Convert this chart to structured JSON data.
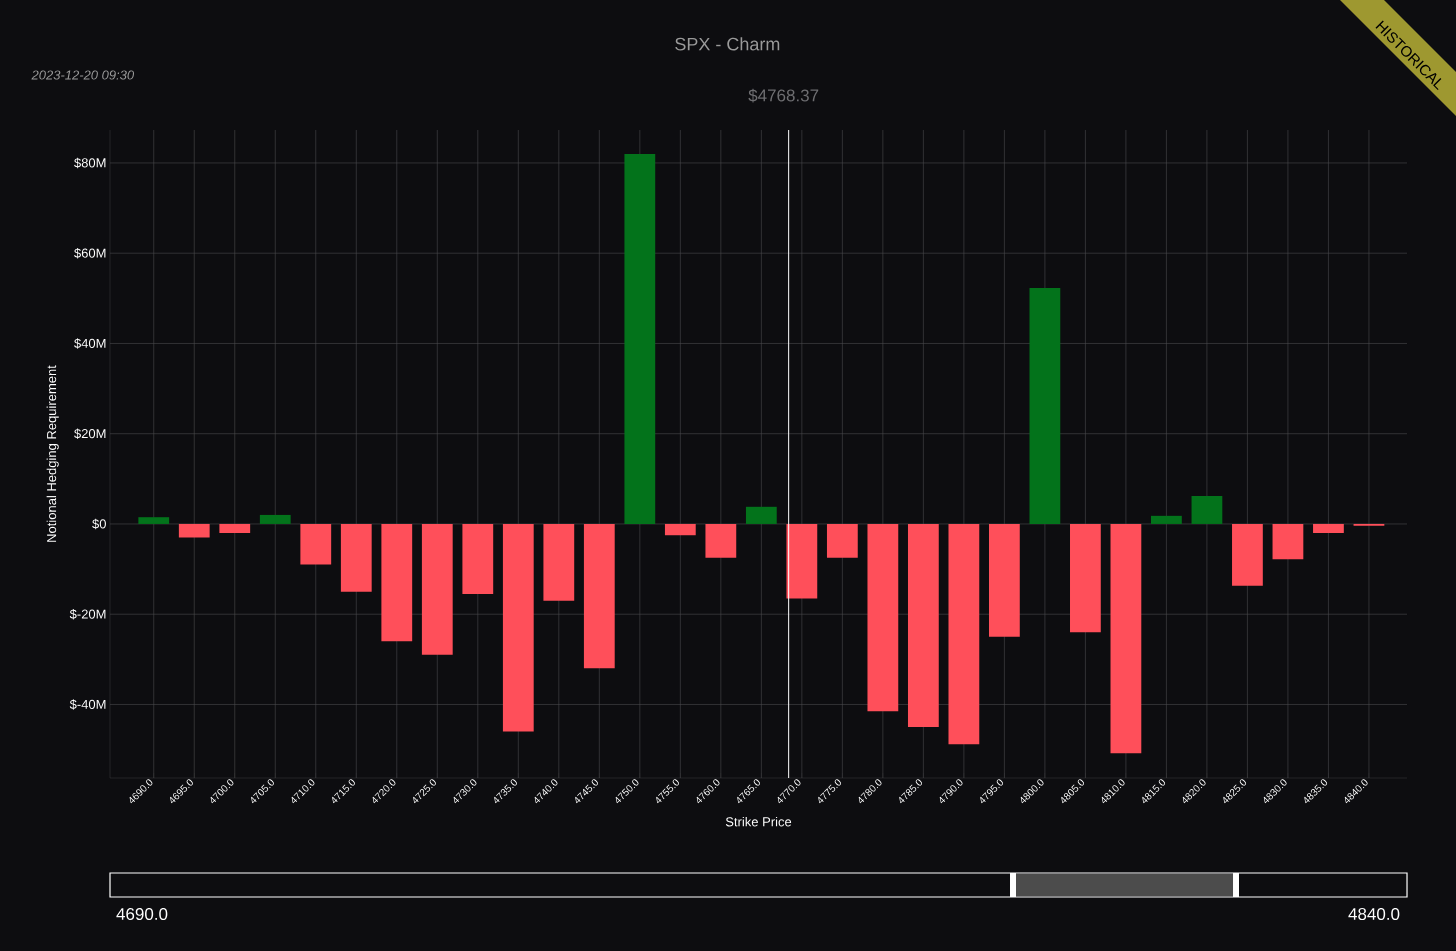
{
  "chart_data": {
    "type": "bar",
    "title": "SPX - Charm",
    "xlabel": "Strike Price",
    "ylabel": "Notional Hedging Requirement",
    "x": [
      4690,
      4695,
      4700,
      4705,
      4710,
      4715,
      4720,
      4725,
      4730,
      4735,
      4740,
      4745,
      4750,
      4755,
      4760,
      4765,
      4770,
      4775,
      4780,
      4785,
      4790,
      4795,
      4800,
      4805,
      4810,
      4815,
      4820,
      4825,
      4830,
      4835,
      4840
    ],
    "values": [
      1.5,
      -3,
      -2,
      2,
      -9,
      -15,
      -26,
      -29,
      -15.5,
      -46,
      -17,
      -32,
      82,
      -2.5,
      -7.5,
      3.8,
      -16.5,
      -7.5,
      -41.5,
      -45,
      -48.8,
      -25,
      52.3,
      -24,
      -50.8,
      1.8,
      6.2,
      -13.7,
      -7.8,
      -2,
      -0.4
    ],
    "colors": [
      "#03731b",
      "#ff4f5a",
      "#ff4f5a",
      "#03731b",
      "#ff4f5a",
      "#ff4f5a",
      "#ff4f5a",
      "#ff4f5a",
      "#ff4f5a",
      "#ff4f5a",
      "#ff4f5a",
      "#ff4f5a",
      "#03731b",
      "#ff4f5a",
      "#ff4f5a",
      "#03731b",
      "#ff4f5a",
      "#ff4f5a",
      "#ff4f5a",
      "#ff4f5a",
      "#ff4f5a",
      "#ff4f5a",
      "#03731b",
      "#ff4f5a",
      "#ff4f5a",
      "#03731b",
      "#03731b",
      "#ff4f5a",
      "#ff4f5a",
      "#ff4f5a",
      "#ff4f5a"
    ],
    "xlim": [
      4684.6,
      4844.7
    ],
    "ylim": [
      -56.3,
      87.3
    ],
    "xticks": [
      {
        "value": 4690,
        "label": "4690.0"
      },
      {
        "value": 4695,
        "label": "4695.0"
      },
      {
        "value": 4700,
        "label": "4700.0"
      },
      {
        "value": 4705,
        "label": "4705.0"
      },
      {
        "value": 4710,
        "label": "4710.0"
      },
      {
        "value": 4715,
        "label": "4715.0"
      },
      {
        "value": 4720,
        "label": "4720.0"
      },
      {
        "value": 4725,
        "label": "4725.0"
      },
      {
        "value": 4730,
        "label": "4730.0"
      },
      {
        "value": 4735,
        "label": "4735.0"
      },
      {
        "value": 4740,
        "label": "4740.0"
      },
      {
        "value": 4745,
        "label": "4745.0"
      },
      {
        "value": 4750,
        "label": "4750.0"
      },
      {
        "value": 4755,
        "label": "4755.0"
      },
      {
        "value": 4760,
        "label": "4760.0"
      },
      {
        "value": 4765,
        "label": "4765.0"
      },
      {
        "value": 4770,
        "label": "4770.0"
      },
      {
        "value": 4775,
        "label": "4775.0"
      },
      {
        "value": 4780,
        "label": "4780.0"
      },
      {
        "value": 4785,
        "label": "4785.0"
      },
      {
        "value": 4790,
        "label": "4790.0"
      },
      {
        "value": 4795,
        "label": "4795.0"
      },
      {
        "value": 4800,
        "label": "4800.0"
      },
      {
        "value": 4805,
        "label": "4805.0"
      },
      {
        "value": 4810,
        "label": "4810.0"
      },
      {
        "value": 4815,
        "label": "4815.0"
      },
      {
        "value": 4820,
        "label": "4820.0"
      },
      {
        "value": 4825,
        "label": "4825.0"
      },
      {
        "value": 4830,
        "label": "4830.0"
      },
      {
        "value": 4835,
        "label": "4835.0"
      },
      {
        "value": 4840,
        "label": "4840.0"
      }
    ],
    "yticks": [
      {
        "value": -40,
        "label": "$-40M"
      },
      {
        "value": -20,
        "label": "$-20M"
      },
      {
        "value": 0,
        "label": "$0"
      },
      {
        "value": 20,
        "label": "$20M"
      },
      {
        "value": 40,
        "label": "$40M"
      },
      {
        "value": 60,
        "label": "$60M"
      },
      {
        "value": 80,
        "label": "$80M"
      }
    ],
    "ref_lines": [
      {
        "axis": "x",
        "value": 4768.37,
        "label": "$4768.37",
        "color": "#ffffff"
      }
    ],
    "annotations": [
      "2023-12-20 09:30",
      "HISTORICAL",
      "4690.0",
      "4840.0"
    ],
    "grid": true
  }
}
